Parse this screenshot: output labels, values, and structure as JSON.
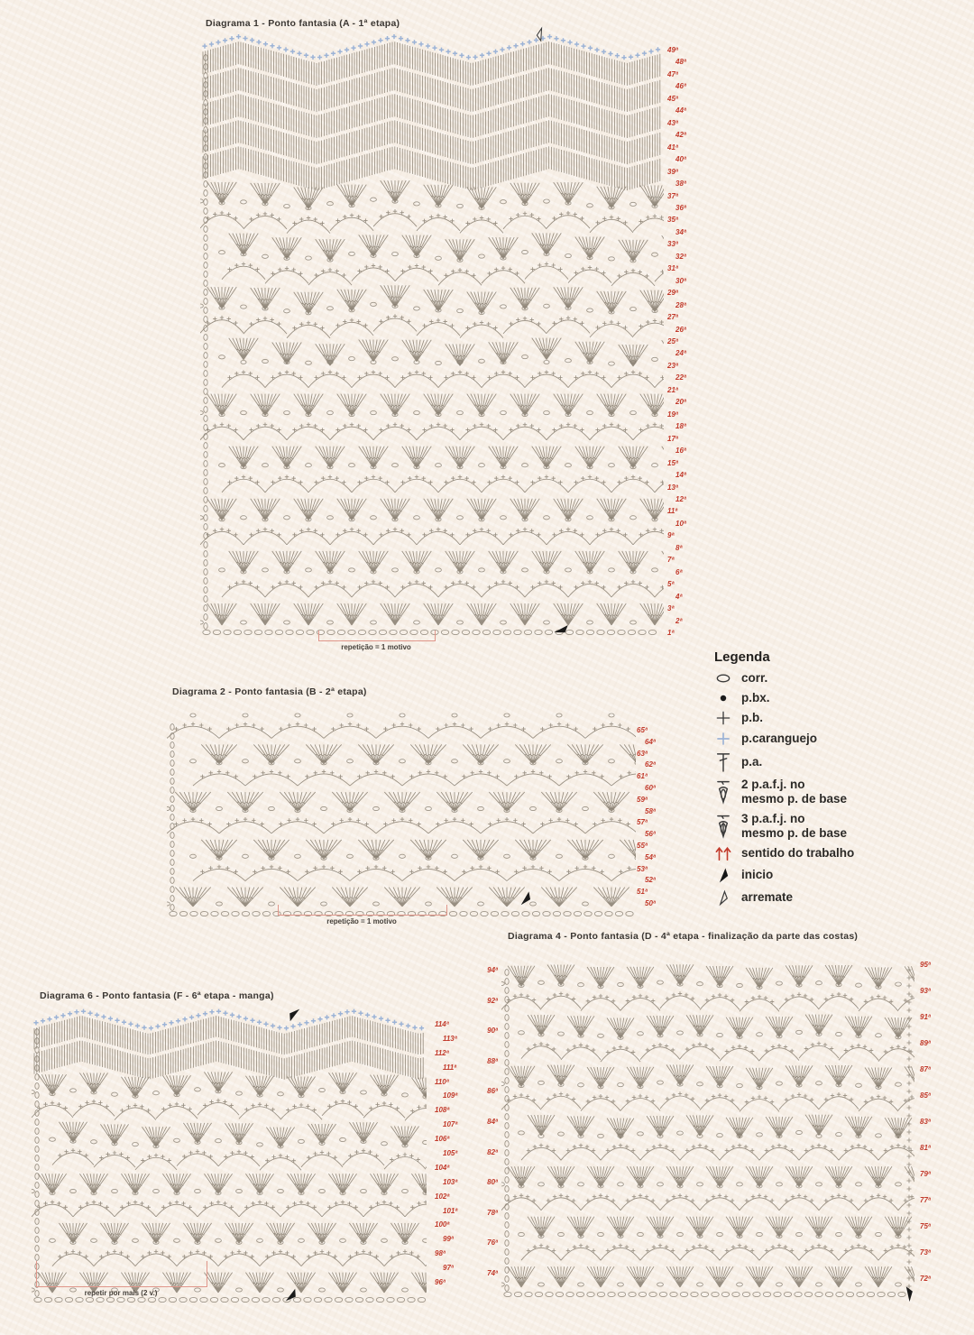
{
  "colors": {
    "paper": "#f7efe6",
    "ink": "#867d6f",
    "red": "#c23a2b",
    "blue": "#9cb3d6",
    "black": "#1a1a1a"
  },
  "diagrams": {
    "d1": {
      "title": "Diagrama 1 -  Ponto fantasia (A - 1ª etapa)",
      "repeat_label": "repetição = 1 motivo",
      "row_labels": [
        "49ª",
        "48ª",
        "47ª",
        "46ª",
        "45ª",
        "44ª",
        "43ª",
        "42ª",
        "41ª",
        "40ª",
        "39ª",
        "38ª",
        "37ª",
        "36ª",
        "35ª",
        "34ª",
        "33ª",
        "32ª",
        "31ª",
        "30ª",
        "29ª",
        "28ª",
        "27ª",
        "26ª",
        "25ª",
        "24ª",
        "23ª",
        "22ª",
        "21ª",
        "20ª",
        "19ª",
        "18ª",
        "17ª",
        "16ª",
        "15ª",
        "14ª",
        "13ª",
        "12ª",
        "11ª",
        "10ª",
        "9ª",
        "8ª",
        "7ª",
        "6ª",
        "5ª",
        "4ª",
        "3ª",
        "2ª",
        "1ª"
      ]
    },
    "d2": {
      "title": "Diagrama 2 -  Ponto fantasia (B - 2ª etapa)",
      "repeat_label": "repetição = 1 motivo",
      "row_labels": [
        "65ª",
        "64ª",
        "63ª",
        "62ª",
        "61ª",
        "60ª",
        "59ª",
        "58ª",
        "57ª",
        "56ª",
        "55ª",
        "54ª",
        "53ª",
        "52ª",
        "51ª",
        "50ª"
      ]
    },
    "d4": {
      "title": "Diagrama 4 - Ponto fantasia (D - 4ª etapa -  finalização da parte das costas)",
      "row_labels_left": [
        "94ª",
        "92ª",
        "90ª",
        "88ª",
        "86ª",
        "84ª",
        "82ª",
        "80ª",
        "78ª",
        "76ª",
        "74ª"
      ],
      "row_labels_right": [
        "95ª",
        "93ª",
        "91ª",
        "89ª",
        "87ª",
        "85ª",
        "83ª",
        "81ª",
        "79ª",
        "77ª",
        "75ª",
        "73ª",
        "72ª"
      ]
    },
    "d6": {
      "title": "Diagrama 6 - Ponto fantasia (F - 6ª etapa - manga)",
      "repeat_label": "repetir por mais (2 v.)",
      "row_labels": [
        "114ª",
        "113ª",
        "112ª",
        "111ª",
        "110ª",
        "109ª",
        "108ª",
        "107ª",
        "106ª",
        "105ª",
        "104ª",
        "103ª",
        "102ª",
        "101ª",
        "100ª",
        "99ª",
        "98ª",
        "97ª",
        "96ª"
      ]
    }
  },
  "legend": {
    "title": "Legenda",
    "items": [
      {
        "icon": "chain-icon",
        "label": "corr."
      },
      {
        "icon": "slip-stitch-icon",
        "label": "p.bx."
      },
      {
        "icon": "single-crochet-icon",
        "label": "p.b."
      },
      {
        "icon": "crab-stitch-icon",
        "label": "p.caranguejo"
      },
      {
        "icon": "double-crochet-icon",
        "label": "p.a."
      },
      {
        "icon": "dc2tog-icon",
        "label": "2 p.a.f.j. no\nmesmo p. de base"
      },
      {
        "icon": "dc3tog-icon",
        "label": "3 p.a.f.j. no\nmesmo p. de base"
      },
      {
        "icon": "work-direction-icon",
        "label": "sentido do trabalho"
      },
      {
        "icon": "start-icon",
        "label": "inicio"
      },
      {
        "icon": "finish-icon",
        "label": "arremate"
      }
    ]
  }
}
